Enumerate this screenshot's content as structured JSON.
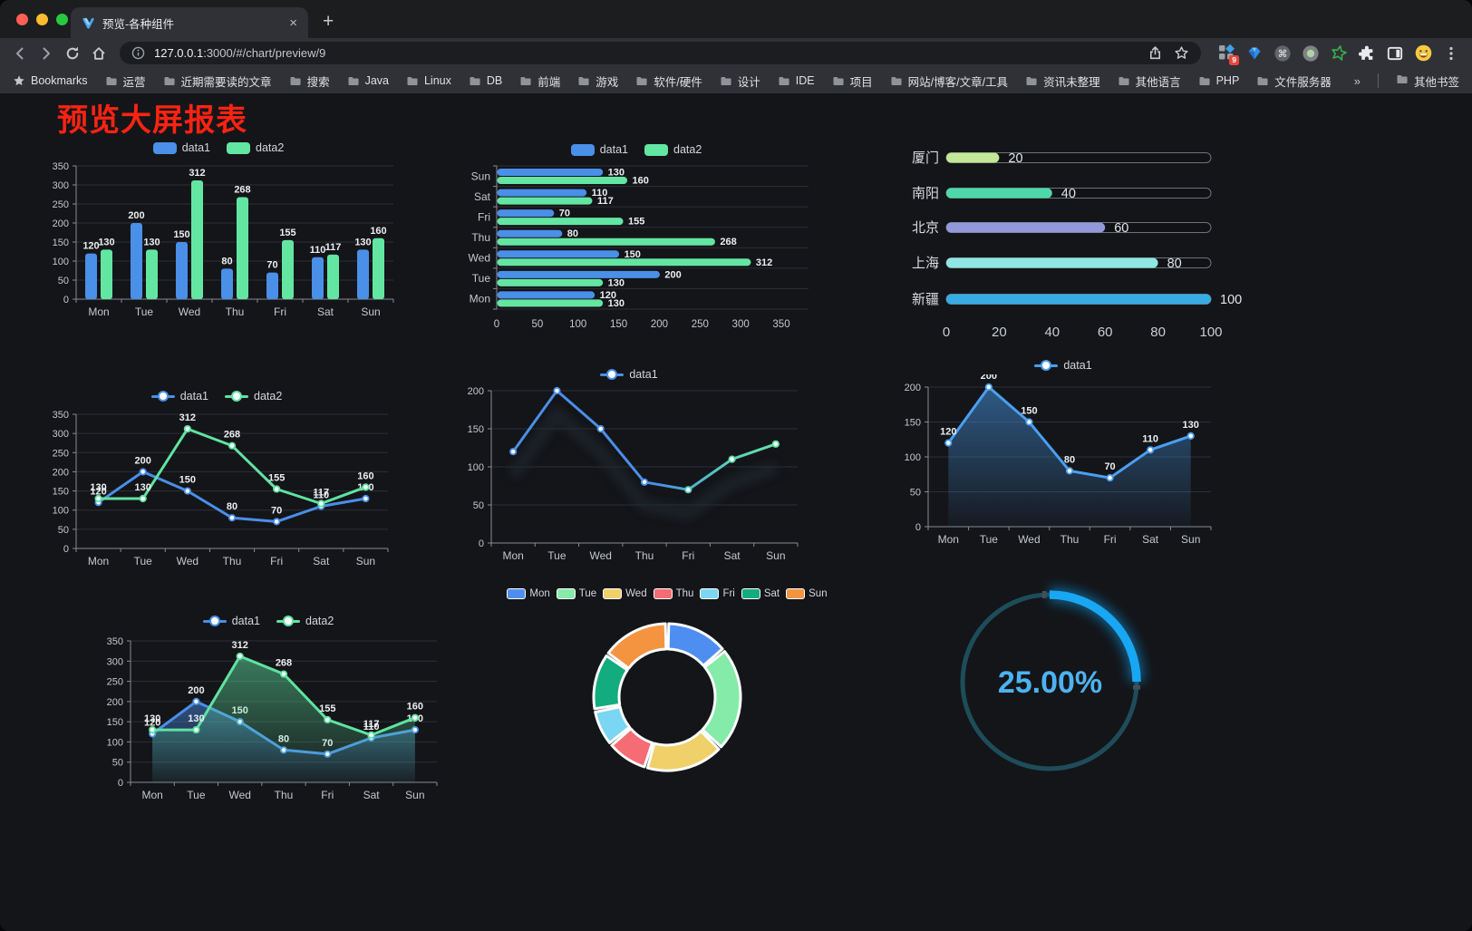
{
  "browser": {
    "tab": {
      "title": "预览-各种组件",
      "close": "×"
    },
    "new_tab": "+",
    "url_host": "127.0.0.1",
    "url_rest": ":3000/#/chart/preview/9",
    "extension_badge": "9",
    "nav_icons": [
      "back-icon",
      "forward-icon",
      "reload-icon",
      "home-icon"
    ],
    "action_icons": [
      "share-icon",
      "bookmark-star-icon",
      "extensions-grid-icon",
      "gem-icon",
      "command-circle-icon",
      "record-circle-icon",
      "green-star-icon",
      "puzzle-icon",
      "side-panel-icon",
      "emoji-icon",
      "menu-dots-icon"
    ],
    "bookmarks": {
      "label": "Bookmarks",
      "folders": [
        "运营",
        "近期需要读的文章",
        "搜索",
        "Java",
        "Linux",
        "DB",
        "前端",
        "游戏",
        "软件/硬件",
        "设计",
        "IDE",
        "项目",
        "网站/博客/文章/工具",
        "资讯未整理",
        "其他语言",
        "PHP",
        "文件服务器"
      ],
      "overflow": "»",
      "other": "其他书签"
    }
  },
  "page": {
    "heading": "预览大屏报表",
    "heading_color": "#FB2312",
    "background": "#141519"
  },
  "chart_data": [
    {
      "id": "grouped-bar",
      "type": "bar",
      "categories": [
        "Mon",
        "Tue",
        "Wed",
        "Thu",
        "Fri",
        "Sat",
        "Sun"
      ],
      "series": [
        {
          "name": "data1",
          "color": "#4A8FE8",
          "values": [
            120,
            200,
            150,
            80,
            70,
            110,
            130
          ]
        },
        {
          "name": "data2",
          "color": "#63E6A2",
          "values": [
            130,
            130,
            312,
            268,
            155,
            117,
            160
          ]
        }
      ],
      "ylim": [
        0,
        350
      ],
      "ytick": 50,
      "legend_position": "top",
      "grid": true
    },
    {
      "id": "grouped-horizontal-bar",
      "type": "bar",
      "orientation": "horizontal",
      "categories": [
        "Mon",
        "Tue",
        "Wed",
        "Thu",
        "Fri",
        "Sat",
        "Sun"
      ],
      "row_order_top_to_bottom": [
        "Sun",
        "Sat",
        "Fri",
        "Thu",
        "Wed",
        "Tue",
        "Mon"
      ],
      "series": [
        {
          "name": "data1",
          "color": "#4A8FE8",
          "values": [
            120,
            200,
            150,
            80,
            70,
            110,
            130
          ]
        },
        {
          "name": "data2",
          "color": "#63E6A2",
          "values": [
            130,
            130,
            312,
            268,
            155,
            117,
            160
          ]
        }
      ],
      "xlim": [
        0,
        350
      ],
      "xtick": 50,
      "legend_position": "top",
      "grid": true
    },
    {
      "id": "city-progress-bars",
      "type": "bar",
      "orientation": "horizontal",
      "categories": [
        "厦门",
        "南阳",
        "北京",
        "上海",
        "新疆"
      ],
      "values": [
        20,
        40,
        60,
        80,
        100
      ],
      "colors": [
        "#C2E796",
        "#4ED8A8",
        "#9398DB",
        "#8FE6E2",
        "#36ABE4"
      ],
      "xlim": [
        0,
        100
      ],
      "xticks": [
        0,
        20,
        40,
        60,
        80,
        100
      ]
    },
    {
      "id": "two-series-line",
      "type": "line",
      "categories": [
        "Mon",
        "Tue",
        "Wed",
        "Thu",
        "Fri",
        "Sat",
        "Sun"
      ],
      "series": [
        {
          "name": "data1",
          "color": "#4A8FE8",
          "values": [
            120,
            200,
            150,
            80,
            70,
            110,
            130
          ]
        },
        {
          "name": "data2",
          "color": "#5FE3A1",
          "values": [
            130,
            130,
            312,
            268,
            155,
            117,
            160
          ]
        }
      ],
      "ylim": [
        0,
        350
      ],
      "ytick": 50,
      "legend_position": "top"
    },
    {
      "id": "gradient-line",
      "type": "line",
      "categories": [
        "Mon",
        "Tue",
        "Wed",
        "Thu",
        "Fri",
        "Sat",
        "Sun"
      ],
      "series": [
        {
          "name": "data1",
          "color_start": "#4A8FE8",
          "color_end": "#63E6A2",
          "values": [
            120,
            200,
            150,
            80,
            70,
            110,
            130
          ]
        }
      ],
      "ylim": [
        0,
        200
      ],
      "ytick": 50,
      "legend_position": "top"
    },
    {
      "id": "blue-area-line",
      "type": "area",
      "categories": [
        "Mon",
        "Tue",
        "Wed",
        "Thu",
        "Fri",
        "Sat",
        "Sun"
      ],
      "series": [
        {
          "name": "data1",
          "color": "#4A9FF2",
          "values": [
            120,
            200,
            150,
            80,
            70,
            110,
            130
          ]
        }
      ],
      "ylim": [
        0,
        200
      ],
      "ytick": 50,
      "legend_position": "top"
    },
    {
      "id": "two-series-area",
      "type": "area",
      "categories": [
        "Mon",
        "Tue",
        "Wed",
        "Thu",
        "Fri",
        "Sat",
        "Sun"
      ],
      "series": [
        {
          "name": "data1",
          "color": "#4A8FE8",
          "values": [
            120,
            200,
            150,
            80,
            70,
            110,
            130
          ]
        },
        {
          "name": "data2",
          "color": "#5FE3A1",
          "values": [
            130,
            130,
            312,
            268,
            155,
            117,
            160
          ]
        }
      ],
      "ylim": [
        0,
        350
      ],
      "ytick": 50,
      "legend_position": "top"
    },
    {
      "id": "week-donut",
      "type": "pie",
      "categories": [
        "Mon",
        "Tue",
        "Wed",
        "Thu",
        "Fri",
        "Sat",
        "Sun"
      ],
      "values": [
        120,
        200,
        150,
        80,
        70,
        110,
        130
      ],
      "colors": [
        "#4E8EF0",
        "#85EBA8",
        "#F0D068",
        "#F56C74",
        "#7AD6F2",
        "#12AC7E",
        "#F59440"
      ],
      "legend_position": "top",
      "donut": true
    },
    {
      "id": "percent-gauge",
      "type": "gauge",
      "value": 25,
      "label": "25.00%",
      "color": "#18A7F2",
      "track_color": "#1E4D5A",
      "text_color": "#4CB3F0"
    }
  ]
}
